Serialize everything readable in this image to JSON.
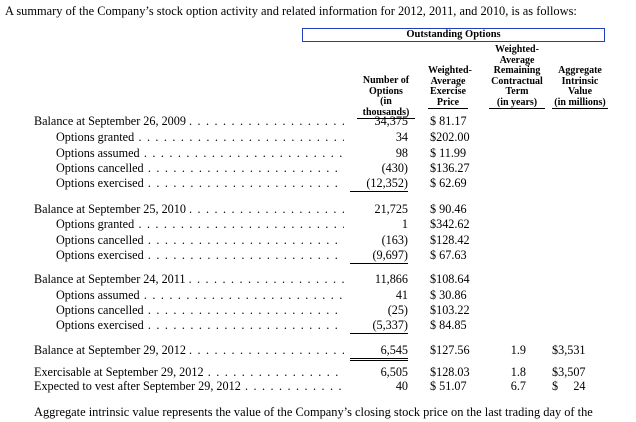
{
  "intro_text": "A summary of the Company’s stock option activity and related information for 2012, 2011, and 2010, is as follows:",
  "outstanding_options_header": "Outstanding Options",
  "columns": {
    "options": [
      "Number of",
      "Options",
      "(in thousands)"
    ],
    "price": [
      "Weighted-",
      "Average",
      "Exercise",
      "Price"
    ],
    "term": [
      "Weighted-",
      "Average",
      "Remaining",
      "Contractual",
      "Term",
      "(in years)"
    ],
    "value": [
      "Aggregate",
      "Intrinsic",
      "Value",
      "(in millions)"
    ]
  },
  "rows": [
    {
      "label": "Balance at September 26, 2009",
      "options": "34,375",
      "price": "$  81.17",
      "term": "",
      "value": ""
    },
    {
      "label": "Options granted",
      "options": "34",
      "price": "$202.00",
      "term": "",
      "value": ""
    },
    {
      "label": "Options assumed",
      "options": "98",
      "price": "$  11.99",
      "term": "",
      "value": ""
    },
    {
      "label": "Options cancelled",
      "options": "(430)",
      "price": "$136.27",
      "term": "",
      "value": ""
    },
    {
      "label": "Options exercised",
      "options": "(12,352)",
      "price": "$  62.69",
      "term": "",
      "value": ""
    },
    {
      "label": "Balance at September 25, 2010",
      "options": "21,725",
      "price": "$  90.46",
      "term": "",
      "value": ""
    },
    {
      "label": "Options granted",
      "options": "1",
      "price": "$342.62",
      "term": "",
      "value": ""
    },
    {
      "label": "Options cancelled",
      "options": "(163)",
      "price": "$128.42",
      "term": "",
      "value": ""
    },
    {
      "label": "Options exercised",
      "options": "(9,697)",
      "price": "$  67.63",
      "term": "",
      "value": ""
    },
    {
      "label": "Balance at September 24, 2011",
      "options": "11,866",
      "price": "$108.64",
      "term": "",
      "value": ""
    },
    {
      "label": "Options assumed",
      "options": "41",
      "price": "$  30.86",
      "term": "",
      "value": ""
    },
    {
      "label": "Options cancelled",
      "options": "(25)",
      "price": "$103.22",
      "term": "",
      "value": ""
    },
    {
      "label": "Options exercised",
      "options": "(5,337)",
      "price": "$  84.85",
      "term": "",
      "value": ""
    },
    {
      "label": "Balance at September 29, 2012",
      "options": "6,545",
      "price": "$127.56",
      "term": "1.9",
      "value": "$3,531"
    },
    {
      "label": "Exercisable at September 29, 2012",
      "options": "6,505",
      "price": "$128.03",
      "term": "1.8",
      "value": "$3,507"
    },
    {
      "label": "Expected to vest after September 29, 2012",
      "options": "40",
      "price": "$  51.07",
      "term": "6.7",
      "value": "$     24"
    }
  ],
  "closing_text": "Aggregate intrinsic value represents the value of the Company’s closing stock price on the last trading day of the"
}
